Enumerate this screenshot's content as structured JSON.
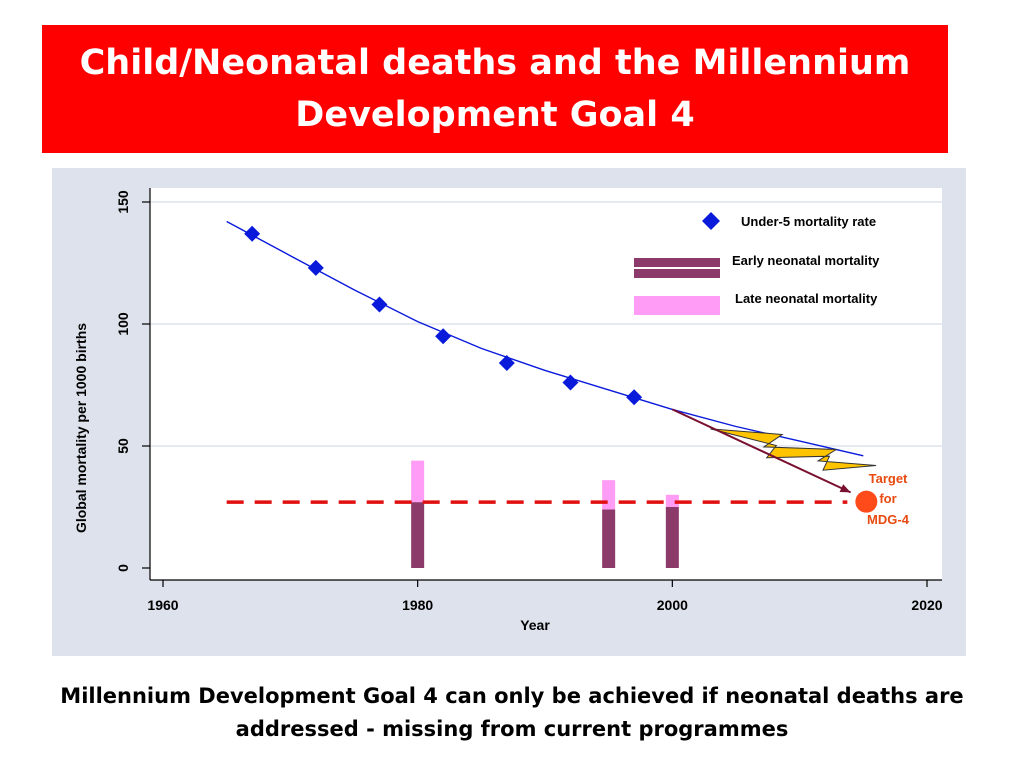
{
  "slide": {
    "title_line1": "Child/Neonatal deaths and the Millennium",
    "title_line2": "Development Goal 4",
    "caption_line1": "Millennium Development Goal 4 can only be achieved if neonatal deaths are",
    "caption_line2": "addressed - missing from current programmes"
  },
  "colors": {
    "title_bg": "#ff0000",
    "panel_bg": "#dde2ec",
    "under5": "#0a1adb",
    "early_neonatal": "#8c3a6a",
    "late_neonatal": "#ff9cf5",
    "target": "#ff4a1a",
    "target_line": "#e01010",
    "arrow": "#7a1030",
    "lightning": "#ffc400"
  },
  "chart_data": {
    "type": "scatter",
    "xlabel": "Year",
    "ylabel": "Global mortality per 1000 births",
    "xlim": [
      1960,
      2020
    ],
    "ylim": [
      0,
      150
    ],
    "x_ticks": [
      1960,
      1980,
      2000,
      2020
    ],
    "y_ticks": [
      0,
      50,
      100,
      150
    ],
    "grid": "horizontal",
    "legend_position": "top-right",
    "legend": {
      "under5": "Under-5 mortality rate",
      "early": "Early neonatal mortality",
      "late": "Late neonatal mortality"
    },
    "under5_points": {
      "x": [
        1967,
        1972,
        1977,
        1982,
        1987,
        1992,
        1997
      ],
      "y": [
        137,
        123,
        108,
        95,
        84,
        76,
        70
      ]
    },
    "under5_trend": {
      "x": [
        1965,
        1970,
        1975,
        1980,
        1985,
        1990,
        1995,
        2000,
        2005,
        2010,
        2015
      ],
      "y": [
        142,
        128,
        114,
        101,
        90,
        81,
        73,
        65,
        58,
        52,
        46
      ]
    },
    "neonatal_bars": {
      "x": [
        1980,
        1995,
        2000
      ],
      "early": [
        27,
        24,
        25
      ],
      "late": [
        17,
        12,
        5
      ]
    },
    "target": {
      "x": 2015,
      "y": 28,
      "label_lines": [
        "Target",
        "for",
        "MDG-4"
      ],
      "line_x": [
        1965,
        2015
      ]
    },
    "projection_arrow": {
      "from": [
        2000,
        65
      ],
      "to": [
        2014,
        31
      ]
    },
    "lightning_from_to": {
      "from": [
        2003,
        57
      ],
      "to": [
        2016,
        42
      ]
    }
  }
}
